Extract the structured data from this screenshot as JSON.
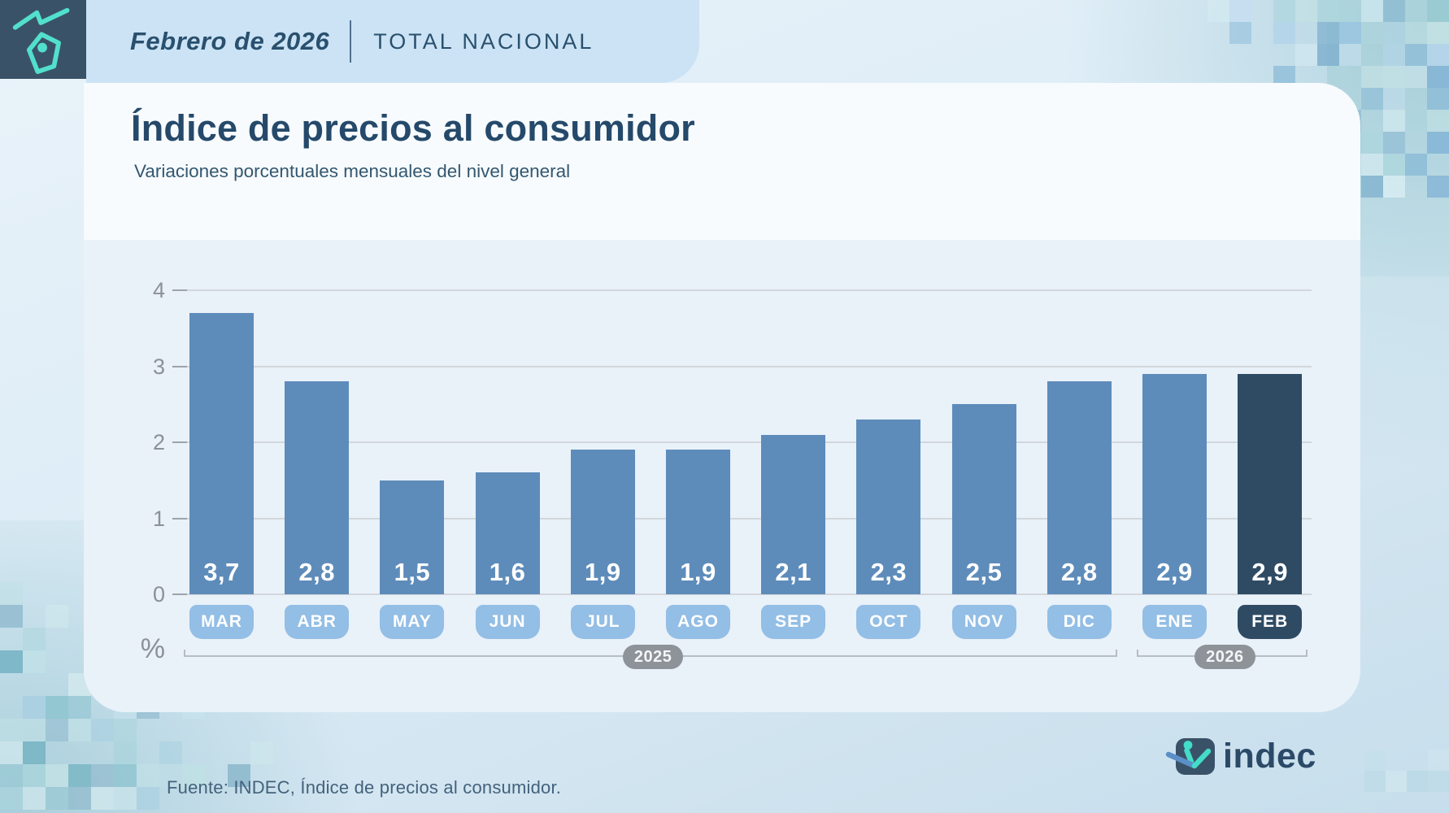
{
  "header": {
    "period": "Febrero de 2026",
    "scope": "TOTAL NACIONAL"
  },
  "title": "Índice de precios al consumidor",
  "subtitle": "Variaciones porcentuales mensuales del nivel general",
  "footer": {
    "source": "Fuente: INDEC, Índice de precios al consumidor."
  },
  "logo": {
    "wordmark": "indec"
  },
  "chart_data": {
    "type": "bar",
    "title": "Índice de precios al consumidor",
    "subtitle": "Variaciones porcentuales mensuales del nivel general",
    "categories": [
      "MAR",
      "ABR",
      "MAY",
      "JUN",
      "JUL",
      "AGO",
      "SEP",
      "OCT",
      "NOV",
      "DIC",
      "ENE",
      "FEB"
    ],
    "values": [
      3.7,
      2.8,
      1.5,
      1.6,
      1.9,
      1.9,
      2.1,
      2.3,
      2.5,
      2.8,
      2.9,
      2.9
    ],
    "value_labels": [
      "3,7",
      "2,8",
      "1,5",
      "1,6",
      "1,9",
      "1,9",
      "2,1",
      "2,3",
      "2,5",
      "2,8",
      "2,9",
      "2,9"
    ],
    "highlight_index": 11,
    "ylabel": "%",
    "ylim": [
      0,
      4
    ],
    "yticks": [
      0,
      1,
      2,
      3,
      4
    ],
    "grid": "horizontal",
    "legend": "none",
    "year_groups": [
      {
        "label": "2025",
        "from_index": 0,
        "to_index": 9
      },
      {
        "label": "2026",
        "from_index": 10,
        "to_index": 11
      }
    ],
    "colors": {
      "bar": "#5e8cba",
      "bar_highlight": "#2f4b64",
      "month_pill": "#93bee5",
      "month_pill_highlight": "#2f4b64",
      "year_pill": "#8e939a",
      "panel_background": "#e9f1f9"
    }
  }
}
